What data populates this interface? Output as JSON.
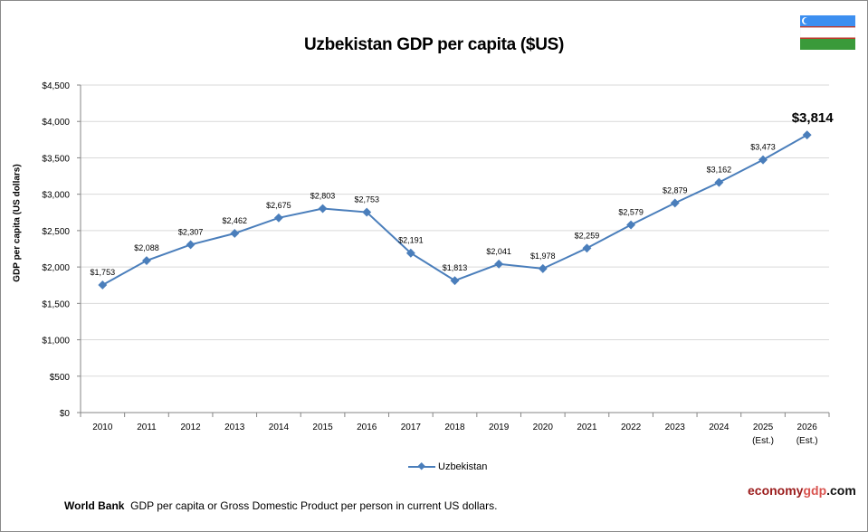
{
  "chart_data": {
    "type": "line",
    "title": "Uzbekistan GDP per capita ($US)",
    "ylabel": "GDP per capita (US dollars)",
    "xlabel": "",
    "categories": [
      "2010",
      "2011",
      "2012",
      "2013",
      "2014",
      "2015",
      "2016",
      "2017",
      "2018",
      "2019",
      "2020",
      "2021",
      "2022",
      "2023",
      "2024",
      "2025",
      "2026"
    ],
    "category_sublabels": [
      "",
      "",
      "",
      "",
      "",
      "",
      "",
      "",
      "",
      "",
      "",
      "",
      "",
      "",
      "",
      "(Est.)",
      "(Est.)"
    ],
    "series": [
      {
        "name": "Uzbekistan",
        "color": "#4a7ebb",
        "values": [
          1753,
          2088,
          2307,
          2462,
          2675,
          2803,
          2753,
          2191,
          1813,
          2041,
          1978,
          2259,
          2579,
          2879,
          3162,
          3473,
          3814
        ],
        "data_labels": [
          "$1,753",
          "$2,088",
          "$2,307",
          "$2,462",
          "$2,675",
          "$2,803",
          "$2,753",
          "$2,191",
          "$1,813",
          "$2,041",
          "$1,978",
          "$2,259",
          "$2,579",
          "$2,879",
          "$3,162",
          "$3,473",
          "$3,814"
        ]
      }
    ],
    "ylim": [
      0,
      4500
    ],
    "yticks": [
      "$0",
      "$500",
      "$1,000",
      "$1,500",
      "$2,000",
      "$2,500",
      "$3,000",
      "$3,500",
      "$4,000",
      "$4,500"
    ],
    "grid": true,
    "legend": "bottom"
  },
  "source": {
    "bold": "World Bank",
    "text": "GDP per capita or Gross Domestic Product per person in current US dollars."
  },
  "brand": {
    "part1": "economy",
    "part2": "gdp",
    "part3": ".com"
  },
  "flag": "Uzbekistan flag"
}
